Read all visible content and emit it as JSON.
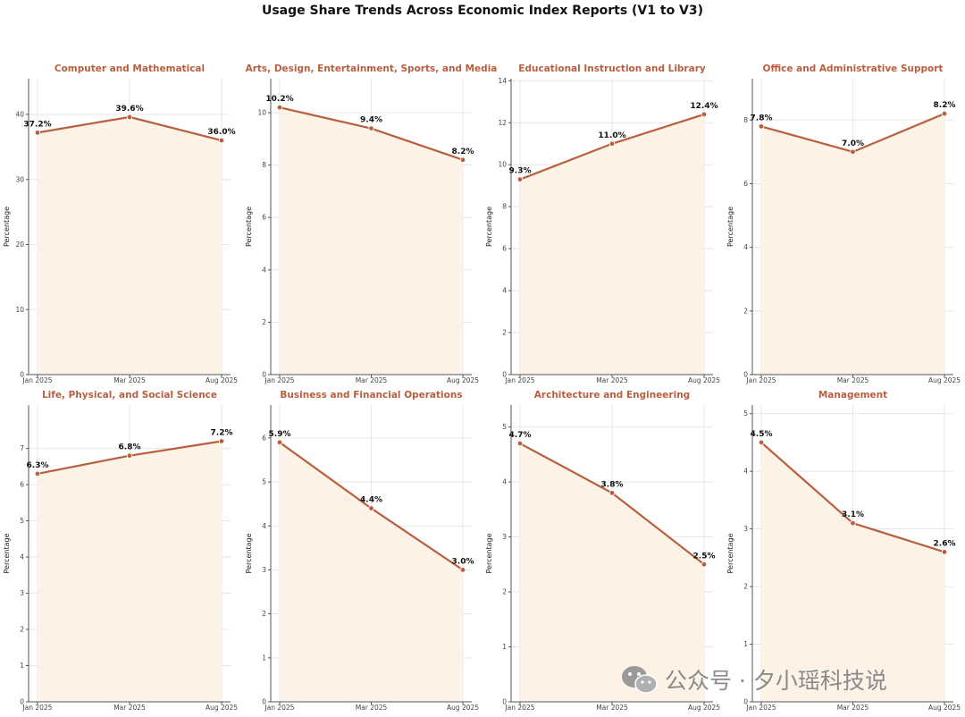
{
  "page_title": "Usage Share Trends Across Economic Index Reports (V1 to V3)",
  "watermark_text": "公众号 · 夕小瑶科技说",
  "colors": {
    "line": "#b85f3f",
    "fill": "#fcf2e6",
    "title": "#b85f3f"
  },
  "chart_data": [
    {
      "type": "area",
      "title": "Computer and Mathematical",
      "xlabel": "",
      "ylabel": "Percentage",
      "categories": [
        "Jan 2025",
        "Mar 2025",
        "Aug 2025"
      ],
      "values": [
        37.2,
        39.6,
        36.0
      ],
      "value_labels": [
        "37.2%",
        "39.6%",
        "36.0%"
      ],
      "yticks": [
        0,
        10,
        20,
        30,
        40
      ],
      "ylim": [
        0,
        45.5
      ],
      "grid": true
    },
    {
      "type": "area",
      "title": "Arts, Design, Entertainment, Sports, and Media",
      "xlabel": "",
      "ylabel": "Percentage",
      "categories": [
        "Jan 2025",
        "Mar 2025",
        "Aug 2025"
      ],
      "values": [
        10.2,
        9.4,
        8.2
      ],
      "value_labels": [
        "10.2%",
        "9.4%",
        "8.2%"
      ],
      "yticks": [
        0,
        2,
        4,
        6,
        8,
        10
      ],
      "ylim": [
        0,
        11.3
      ],
      "grid": true
    },
    {
      "type": "area",
      "title": "Educational Instruction and Library",
      "xlabel": "",
      "ylabel": "Percentage",
      "categories": [
        "Jan 2025",
        "Mar 2025",
        "Aug 2025"
      ],
      "values": [
        9.3,
        11.0,
        12.4
      ],
      "value_labels": [
        "9.3%",
        "11.0%",
        "12.4%"
      ],
      "yticks": [
        0,
        2,
        4,
        6,
        8,
        10,
        12,
        14
      ],
      "ylim": [
        0,
        14.1
      ],
      "grid": true
    },
    {
      "type": "area",
      "title": "Office and Administrative Support",
      "xlabel": "",
      "ylabel": "Percentage",
      "categories": [
        "Jan 2025",
        "Mar 2025",
        "Aug 2025"
      ],
      "values": [
        7.8,
        7.0,
        8.2
      ],
      "value_labels": [
        "7.8%",
        "7.0%",
        "8.2%"
      ],
      "yticks": [
        0,
        2,
        4,
        6,
        8
      ],
      "ylim": [
        0,
        9.3
      ],
      "grid": true
    },
    {
      "type": "area",
      "title": "Life, Physical, and Social Science",
      "xlabel": "",
      "ylabel": "Percentage",
      "categories": [
        "Jan 2025",
        "Mar 2025",
        "Aug 2025"
      ],
      "values": [
        6.3,
        6.8,
        7.2
      ],
      "value_labels": [
        "6.3%",
        "6.8%",
        "7.2%"
      ],
      "yticks": [
        0,
        1,
        2,
        3,
        4,
        5,
        6,
        7
      ],
      "ylim": [
        0,
        8.2
      ],
      "grid": true
    },
    {
      "type": "area",
      "title": "Business and Financial Operations",
      "xlabel": "",
      "ylabel": "Percentage",
      "categories": [
        "Jan 2025",
        "Mar 2025",
        "Aug 2025"
      ],
      "values": [
        5.9,
        4.4,
        3.0
      ],
      "value_labels": [
        "5.9%",
        "4.4%",
        "3.0%"
      ],
      "yticks": [
        0,
        1,
        2,
        3,
        4,
        5,
        6
      ],
      "ylim": [
        0,
        6.75
      ],
      "grid": true
    },
    {
      "type": "area",
      "title": "Architecture and Engineering",
      "xlabel": "",
      "ylabel": "Percentage",
      "categories": [
        "Jan 2025",
        "Mar 2025",
        "Aug 2025"
      ],
      "values": [
        4.7,
        3.8,
        2.5
      ],
      "value_labels": [
        "4.7%",
        "3.8%",
        "2.5%"
      ],
      "yticks": [
        0,
        1,
        2,
        3,
        4,
        5
      ],
      "ylim": [
        0,
        5.4
      ],
      "grid": true
    },
    {
      "type": "area",
      "title": "Management",
      "xlabel": "",
      "ylabel": "Percentage",
      "categories": [
        "Jan 2025",
        "Mar 2025",
        "Aug 2025"
      ],
      "values": [
        4.5,
        3.1,
        2.6
      ],
      "value_labels": [
        "4.5%",
        "3.1%",
        "2.6%"
      ],
      "yticks": [
        0,
        1,
        2,
        3,
        4,
        5
      ],
      "ylim": [
        0,
        5.15
      ],
      "grid": true
    }
  ]
}
